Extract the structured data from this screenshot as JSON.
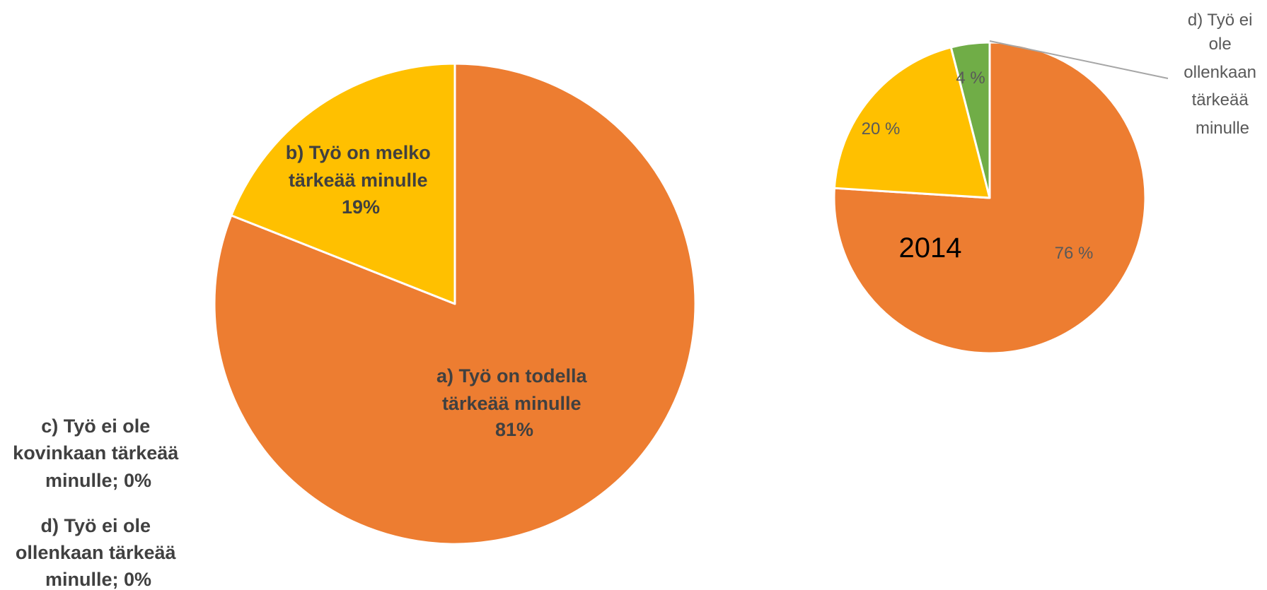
{
  "chart_data": [
    {
      "type": "pie",
      "categories": [
        "a) Työ on todella tärkeää minulle",
        "b) Työ on melko tärkeää minulle",
        "c) Työ ei ole kovinkaan tärkeää minulle",
        "d) Työ ei ole ollenkaan tärkeää minulle"
      ],
      "values": [
        81,
        19,
        0,
        0
      ],
      "colors": [
        "#ED7D31",
        "#FFC000",
        "#5B9BD5",
        "#70AD47"
      ],
      "labels": {
        "a": [
          "a) Työ on todella",
          "tärkeää minulle",
          "81%"
        ],
        "b": [
          "b) Työ on melko",
          "tärkeää minulle",
          "19%"
        ],
        "c": [
          "c) Työ ei ole",
          "kovinkaan tärkeää",
          "minulle; 0%"
        ],
        "d": [
          "d) Työ ei ole",
          "ollenkaan tärkeää",
          "minulle; 0%"
        ]
      }
    },
    {
      "type": "pie",
      "title": "2014",
      "categories": [
        "a) Työ on todella tärkeää minulle",
        "b) Työ on melko tärkeää minulle",
        "d) Työ ei ole ollenkaan tärkeää minulle"
      ],
      "values": [
        76,
        20,
        4
      ],
      "colors": [
        "#ED7D31",
        "#FFC000",
        "#70AD47"
      ],
      "value_labels": [
        "76 %",
        "20 %",
        "4 %"
      ],
      "callout": [
        "d) Työ ei",
        "ole",
        "ollenkaan",
        "tärkeää",
        "minulle"
      ]
    }
  ]
}
